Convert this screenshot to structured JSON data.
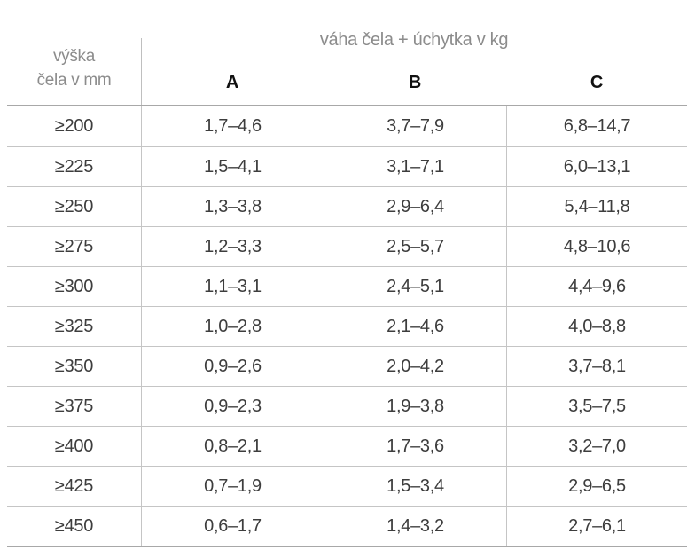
{
  "header": {
    "row_header_line1": "výška",
    "row_header_line2": "čela v mm"
  },
  "colors": {
    "background": "#ffffff",
    "grid_line_inner": "#c5c5c5",
    "grid_line_outer": "#a8a8a8",
    "data_text": "#3d3d3d",
    "muted_text": "#8c8c8c",
    "column_letter_text": "#111111"
  },
  "chart_data": {
    "type": "table",
    "title": "váha čela + úchytka v kg",
    "row_header_label": "výška čela v mm",
    "columns": [
      "A",
      "B",
      "C"
    ],
    "unit": "kg",
    "rows": [
      {
        "height": "≥200",
        "a": "1,7–4,6",
        "b": "3,7–7,9",
        "c": "6,8–14,7"
      },
      {
        "height": "≥225",
        "a": "1,5–4,1",
        "b": "3,1–7,1",
        "c": "6,0–13,1"
      },
      {
        "height": "≥250",
        "a": "1,3–3,8",
        "b": "2,9–6,4",
        "c": "5,4–11,8"
      },
      {
        "height": "≥275",
        "a": "1,2–3,3",
        "b": "2,5–5,7",
        "c": "4,8–10,6"
      },
      {
        "height": "≥300",
        "a": "1,1–3,1",
        "b": "2,4–5,1",
        "c": "4,4–9,6"
      },
      {
        "height": "≥325",
        "a": "1,0–2,8",
        "b": "2,1–4,6",
        "c": "4,0–8,8"
      },
      {
        "height": "≥350",
        "a": "0,9–2,6",
        "b": "2,0–4,2",
        "c": "3,7–8,1"
      },
      {
        "height": "≥375",
        "a": "0,9–2,3",
        "b": "1,9–3,8",
        "c": "3,5–7,5"
      },
      {
        "height": "≥400",
        "a": "0,8–2,1",
        "b": "1,7–3,6",
        "c": "3,2–7,0"
      },
      {
        "height": "≥425",
        "a": "0,7–1,9",
        "b": "1,5–3,4",
        "c": "2,9–6,5"
      },
      {
        "height": "≥450",
        "a": "0,6–1,7",
        "b": "1,4–3,2",
        "c": "2,7–6,1"
      }
    ]
  }
}
